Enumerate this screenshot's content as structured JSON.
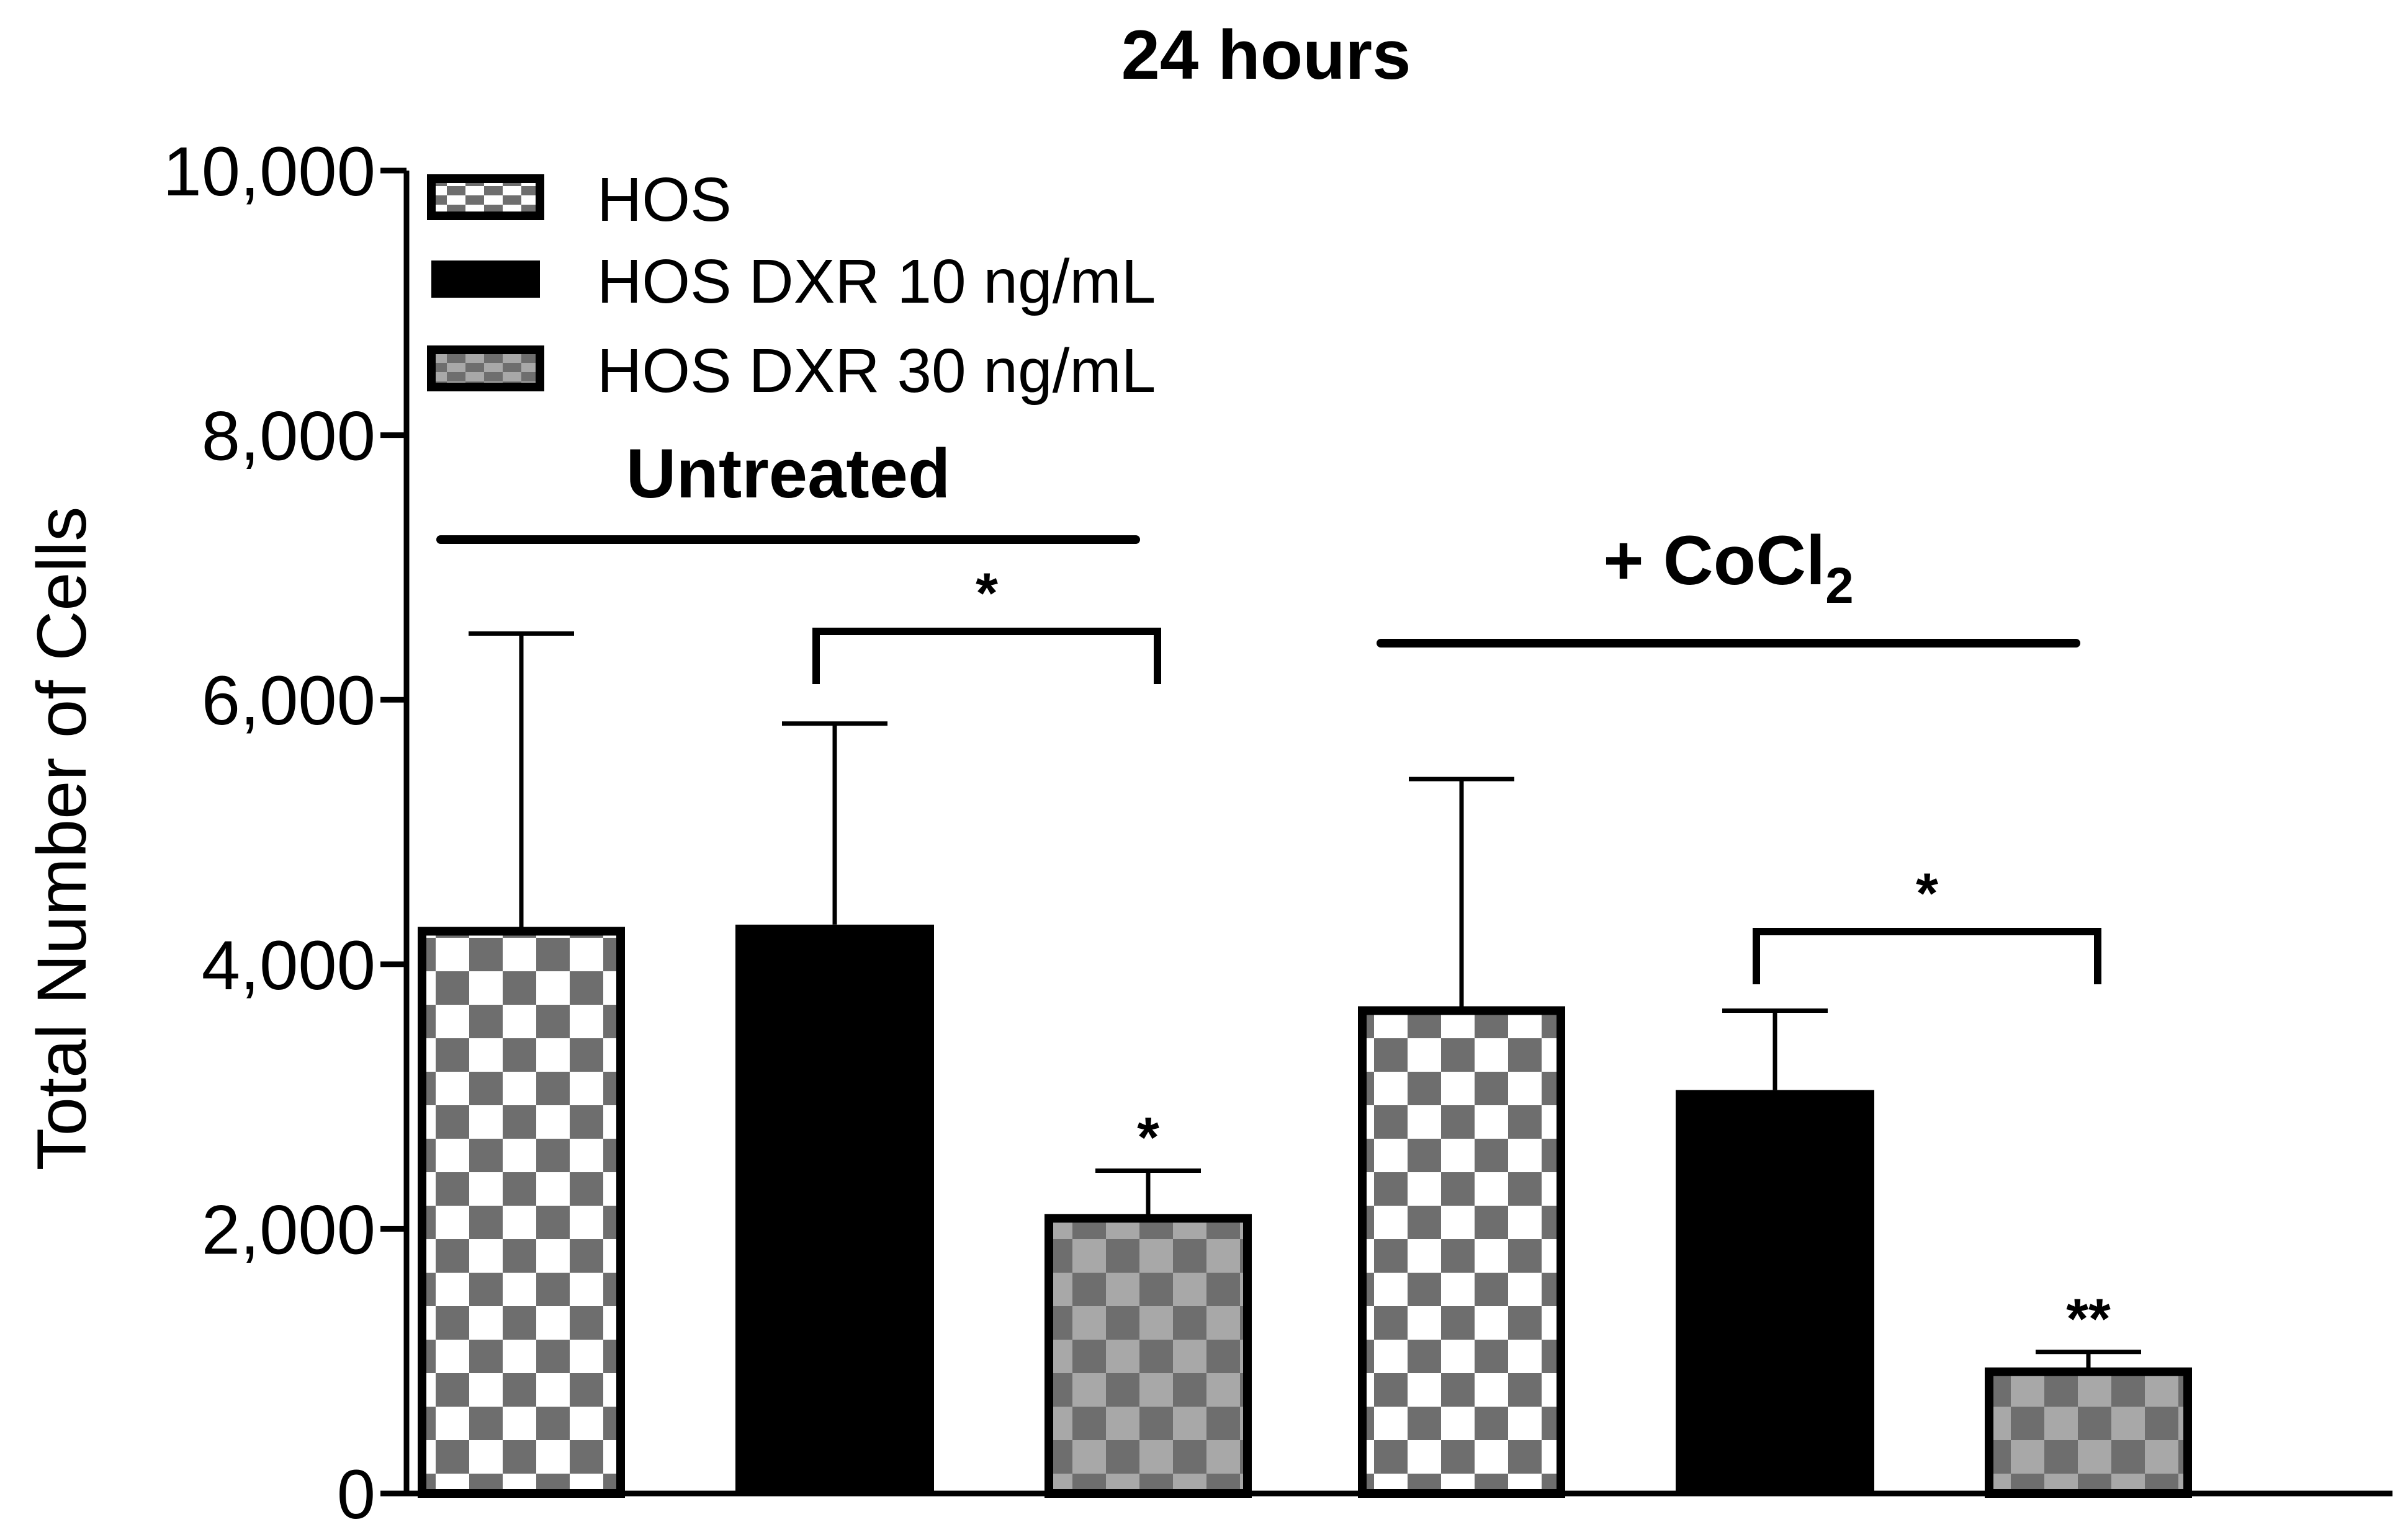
{
  "chart_data": {
    "type": "bar",
    "title": "24 hours",
    "xlabel": "",
    "ylabel": "Total Number of Cells",
    "ylim": [
      0,
      10000
    ],
    "yticks": [
      0,
      2000,
      4000,
      6000,
      8000,
      10000
    ],
    "ytick_labels": [
      "0",
      "2,000",
      "4,000",
      "6,000",
      "8,000",
      "10,000"
    ],
    "legend_position": "top-left",
    "groups": [
      {
        "label": "Untreated",
        "label_main": "Untreated",
        "label_sub": ""
      },
      {
        "label": "+ CoCl2",
        "label_main": "+ CoCl",
        "label_sub": "2"
      }
    ],
    "series": [
      {
        "name": "HOS",
        "pattern": "checker-white-darkgray",
        "values": [
          4250,
          3650
        ],
        "errors": [
          2250,
          1750
        ]
      },
      {
        "name": "HOS DXR 10 ng/mL",
        "pattern": "solid-black",
        "values": [
          4300,
          3050
        ],
        "errors": [
          1520,
          600
        ]
      },
      {
        "name": "HOS DXR 30 ng/mL",
        "pattern": "checker-lightgray-darkgray",
        "values": [
          2080,
          920
        ],
        "errors": [
          360,
          150
        ]
      }
    ],
    "annotations": {
      "bar_marks": [
        {
          "group": 0,
          "series": 2,
          "text": "*"
        },
        {
          "group": 1,
          "series": 2,
          "text": "**"
        }
      ],
      "brackets": [
        {
          "group": 0,
          "from_series": 1,
          "to_series": 2,
          "text": "*"
        },
        {
          "group": 1,
          "from_series": 1,
          "to_series": 2,
          "text": "*"
        }
      ]
    },
    "colors": {
      "dark": "#6e6e6e",
      "light": "#a8a8a8",
      "white": "#ffffff",
      "black": "#000000"
    }
  }
}
